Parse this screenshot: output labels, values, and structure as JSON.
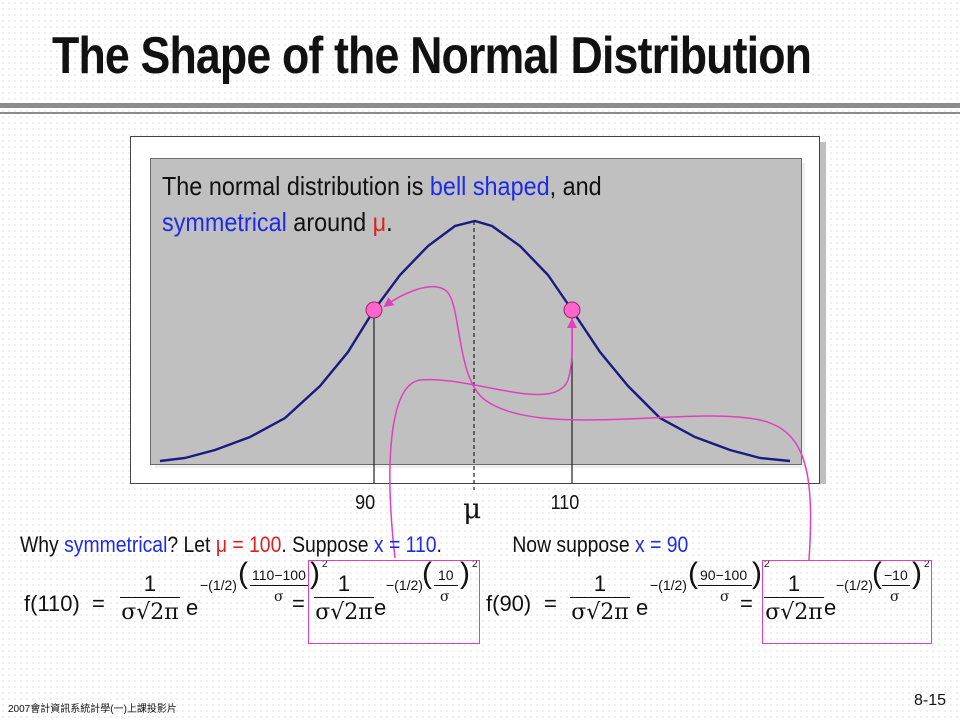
{
  "slide": {
    "title": "The Shape of the Normal Distribution",
    "intro": {
      "part1": "The normal distribution is ",
      "bell": "bell shaped",
      "part2": ", and",
      "symmetrical": "symmetrical",
      "part3": " around ",
      "mu": "μ",
      "period": "."
    },
    "axis": {
      "left_label": "90",
      "mu_label": "μ",
      "right_label": "110"
    },
    "question": {
      "why": "Why ",
      "symmetrical": "symmetrical",
      "q": "?  Let ",
      "mu": "μ",
      "eq100": " = 100",
      "dot": ".  Suppose ",
      "x": "x",
      "eq110": " = 110",
      "dot2": ".",
      "now": "Now suppose ",
      "x2": "x",
      "eq90": " = 90"
    },
    "formula1": {
      "fx": "f(110)",
      "eq": "=",
      "num": "1",
      "den": "σ√2π",
      "exp_a": "−(1/2)",
      "exp_b": "110−100",
      "exp_c": "σ",
      "exp_d": "2",
      "boxed_exp_b": "10",
      "boxed_exp_c": "σ"
    },
    "formula2": {
      "fx": "f(90)",
      "eq": "=",
      "num": "1",
      "den": "σ√2π",
      "exp_a": "−(1/2)",
      "exp_b": "90−100",
      "exp_c": "σ",
      "exp_d": "2",
      "boxed_exp_b": "−10",
      "boxed_exp_c": "σ"
    },
    "e_symbol": "e",
    "footer": "2007會計資訊系統計學(一)上課投影片",
    "page": "8-15",
    "colors": {
      "highlight_blue": "#1d2be6",
      "highlight_red": "#e02020",
      "curve": "#1a1a80",
      "arrow": "#e040c0",
      "dot": "#ff66cc"
    }
  }
}
